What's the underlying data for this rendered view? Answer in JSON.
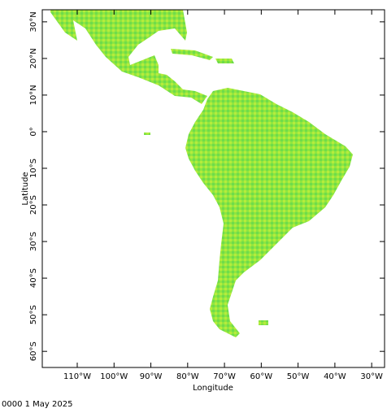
{
  "map": {
    "xlabel": "Longitude",
    "ylabel": "Latitude",
    "footer": "0000 1 May 2025",
    "xlim": [
      -119.5,
      -26.5
    ],
    "ylim": [
      -64.4,
      33.3
    ],
    "xticks": [
      {
        "value": -110,
        "label": "110°W"
      },
      {
        "value": -100,
        "label": "100°W"
      },
      {
        "value": -90,
        "label": "90°W"
      },
      {
        "value": -80,
        "label": "80°W"
      },
      {
        "value": -70,
        "label": "70°W"
      },
      {
        "value": -60,
        "label": "60°W"
      },
      {
        "value": -50,
        "label": "50°W"
      },
      {
        "value": -40,
        "label": "40°W"
      },
      {
        "value": -30,
        "label": "30°W"
      }
    ],
    "yticks": [
      {
        "value": 30,
        "label": "30°N"
      },
      {
        "value": 20,
        "label": "20°N"
      },
      {
        "value": 10,
        "label": "10°N"
      },
      {
        "value": 0,
        "label": "0°"
      },
      {
        "value": -10,
        "label": "10°S"
      },
      {
        "value": -20,
        "label": "20°S"
      },
      {
        "value": -30,
        "label": "30°S"
      },
      {
        "value": -40,
        "label": "40°S"
      },
      {
        "value": -50,
        "label": "50°S"
      },
      {
        "value": -60,
        "label": "60°S"
      }
    ]
  }
}
